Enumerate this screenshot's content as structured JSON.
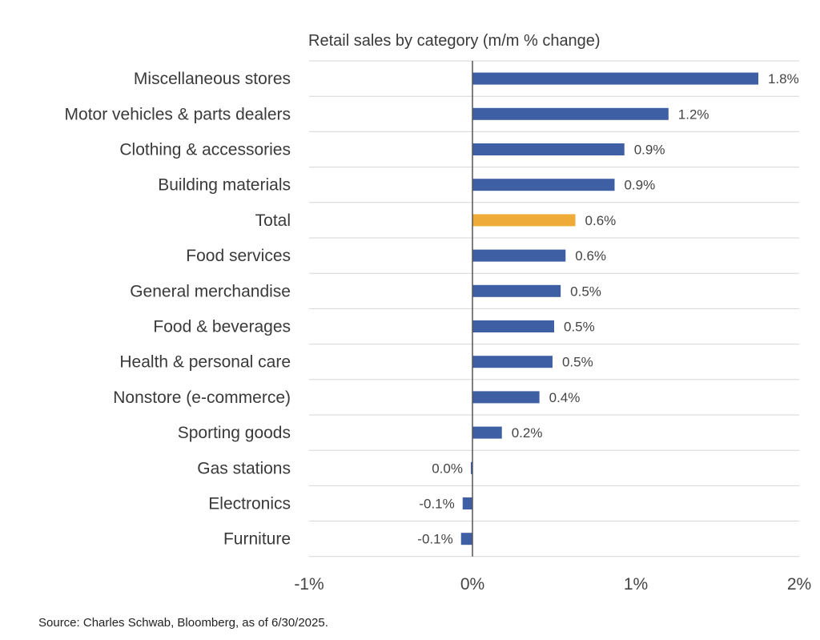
{
  "chart_data": {
    "type": "bar",
    "orientation": "horizontal",
    "title": "Retail sales by category (m/m % change)",
    "categories": [
      "Miscellaneous stores",
      "Motor vehicles & parts dealers",
      "Clothing & accessories",
      "Building materials",
      "Total",
      "Food services",
      "General merchandise",
      "Food & beverages",
      "Health & personal care",
      "Nonstore (e-commerce)",
      "Sporting goods",
      "Gas stations",
      "Electronics",
      "Furniture"
    ],
    "values": [
      1.75,
      1.2,
      0.93,
      0.87,
      0.63,
      0.57,
      0.54,
      0.5,
      0.49,
      0.41,
      0.18,
      -0.01,
      -0.06,
      -0.07
    ],
    "value_labels": [
      "1.8%",
      "1.2%",
      "0.9%",
      "0.9%",
      "0.6%",
      "0.6%",
      "0.5%",
      "0.5%",
      "0.5%",
      "0.4%",
      "0.2%",
      "0.0%",
      "-0.1%",
      "-0.1%"
    ],
    "highlight_category": "Total",
    "colors": {
      "default": "#3e5fa3",
      "highlight": "#eeab38",
      "grid": "#d6d6d6",
      "axis": "#555555"
    },
    "xlim": [
      -1,
      2
    ],
    "xticks": [
      -1,
      0,
      1,
      2
    ],
    "xtick_labels": [
      "-1%",
      "0%",
      "1%",
      "2%"
    ],
    "xlabel": "",
    "ylabel": "",
    "grid": true
  },
  "source": "Source: Charles Schwab, Bloomberg, as of 6/30/2025."
}
